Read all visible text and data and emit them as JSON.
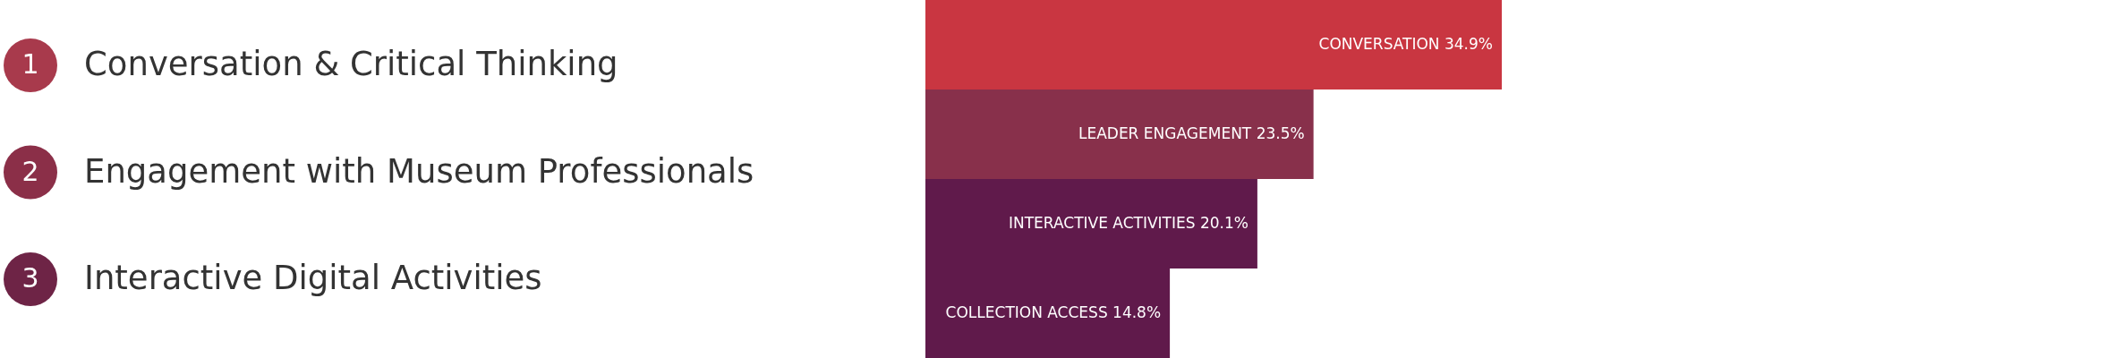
{
  "chart_data": {
    "type": "bar",
    "orientation": "horizontal",
    "categories": [
      null,
      null,
      null,
      null
    ],
    "values": [
      34.9,
      23.5,
      20.1,
      14.8
    ],
    "colors": [
      "#c93641",
      "#88304b",
      "#601a4b",
      "#601a4b"
    ],
    "value_labels": [
      "CONVERSATION 34.9%",
      "LEADER ENGAGEMENT 23.5%",
      "INTERACTIVE ACTIVITIES 20.1%",
      "COLLECTION ACCESS 14.8%"
    ],
    "annotations": [
      "1",
      "Conversation & Critical Thinking",
      "2",
      "Engagement with Museum Professionals",
      "3",
      "Interactive Digital Activities"
    ],
    "relative": false
  }
}
